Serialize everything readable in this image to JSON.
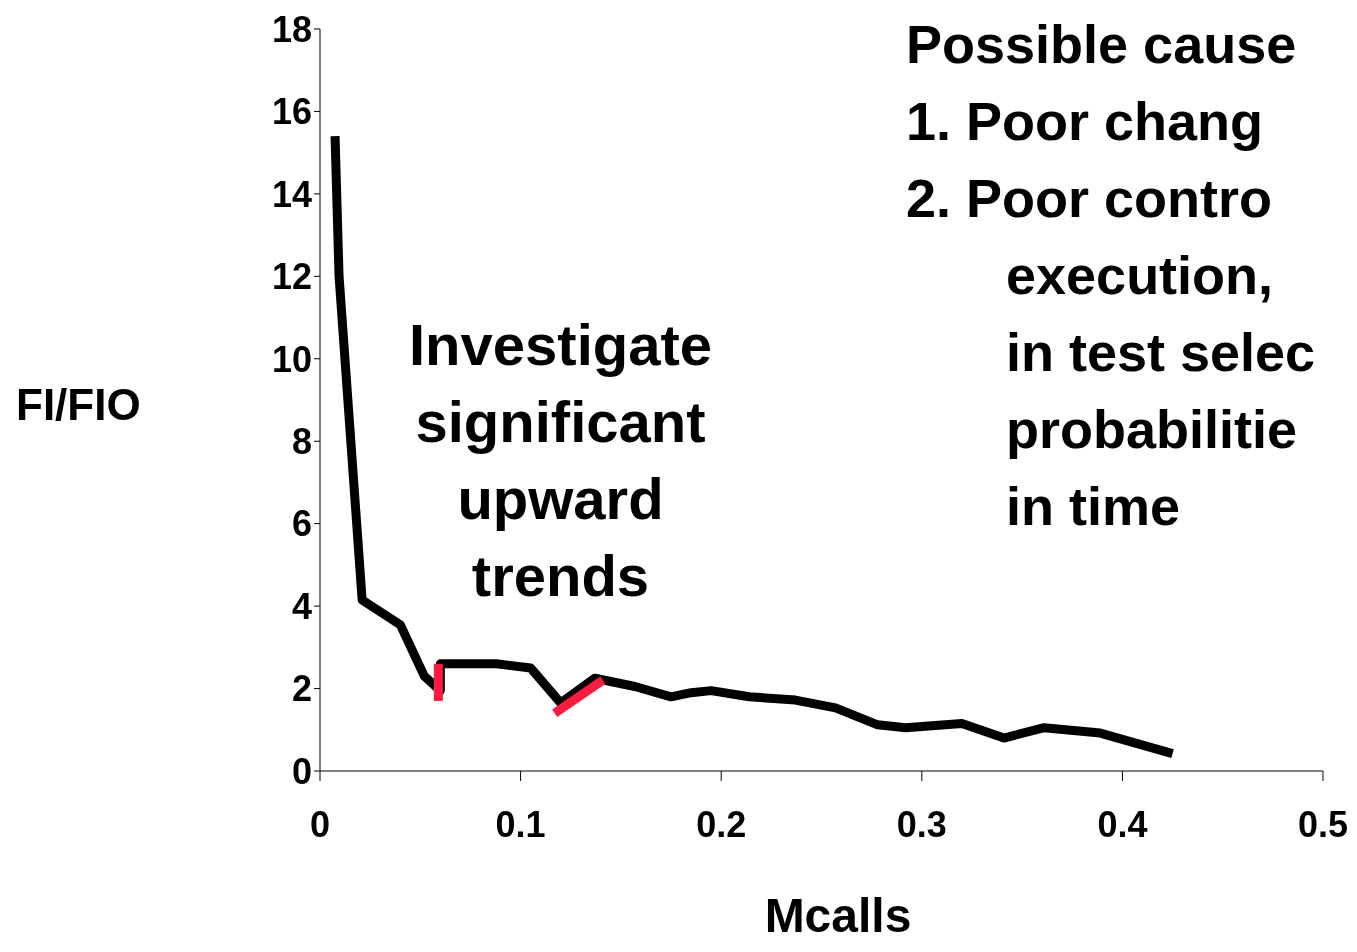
{
  "chart_data": {
    "type": "line",
    "xlabel": "Mcalls",
    "ylabel": "FI/FIO",
    "xlim": [
      0,
      0.5
    ],
    "xticks": [
      0,
      0.1,
      0.2,
      0.3,
      0.4,
      0.5
    ],
    "ylim": [
      0,
      18
    ],
    "yticks": [
      0,
      2,
      4,
      6,
      8,
      10,
      12,
      14,
      16,
      18
    ],
    "marker": "none",
    "line_style": "solid",
    "series": [
      {
        "color": "#000000",
        "x": [
          0.0075,
          0.0095,
          0.021,
          0.04,
          0.052,
          0.06,
          0.06,
          0.088,
          0.105,
          0.12,
          0.137,
          0.157,
          0.175,
          0.185,
          0.195,
          0.214,
          0.237,
          0.257,
          0.278,
          0.292,
          0.32,
          0.341,
          0.361,
          0.389,
          0.425
        ],
        "values": [
          15.4,
          12,
          4.15,
          3.55,
          2.3,
          1.95,
          2.6,
          2.6,
          2.5,
          1.65,
          2.25,
          2.05,
          1.8,
          1.9,
          1.95,
          1.8,
          1.72,
          1.53,
          1.12,
          1.05,
          1.15,
          0.8,
          1.05,
          0.92,
          0.42
        ]
      },
      {
        "type": "line",
        "color": "#ff1a40",
        "x": [
          0.059,
          0.059
        ],
        "values": [
          1.7,
          2.6
        ]
      },
      {
        "type": "line",
        "color": "#ff1a40",
        "x": [
          0.117,
          0.141
        ],
        "values": [
          1.4,
          2.2
        ]
      }
    ],
    "annotations": [
      "Investigate significant upward trends",
      "Possible cause",
      "1.  Poor chang",
      "2.  Poor contro",
      "execution,",
      "in test selec",
      "probabilitie",
      "in time"
    ]
  }
}
